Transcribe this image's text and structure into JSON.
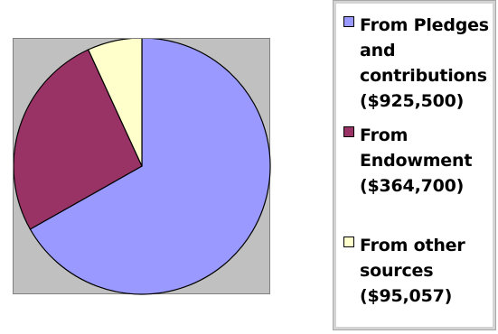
{
  "chart_data": {
    "type": "pie",
    "categories": [
      "From Pledges and contributions ($925,500)",
      "From Endowment ($364,700)",
      "From other sources ($95,057)"
    ],
    "values": [
      925500,
      364700,
      95057
    ],
    "colors": [
      "#9999ff",
      "#993366",
      "#ffffcc"
    ],
    "legend": {
      "position": "right",
      "entries": [
        {
          "lines": [
            "From Pledges",
            "and",
            "contributions",
            "($925,500)"
          ],
          "color": "#9999ff"
        },
        {
          "lines": [
            "From",
            "Endowment",
            "($364,700)"
          ],
          "color": "#993366"
        },
        {
          "lines": [
            "From other",
            "sources",
            "($95,057)"
          ],
          "color": "#ffffcc"
        }
      ]
    },
    "title": "",
    "start_angle_deg": 0,
    "direction": "clockwise",
    "plot_area_background": "#c0c0c0"
  }
}
